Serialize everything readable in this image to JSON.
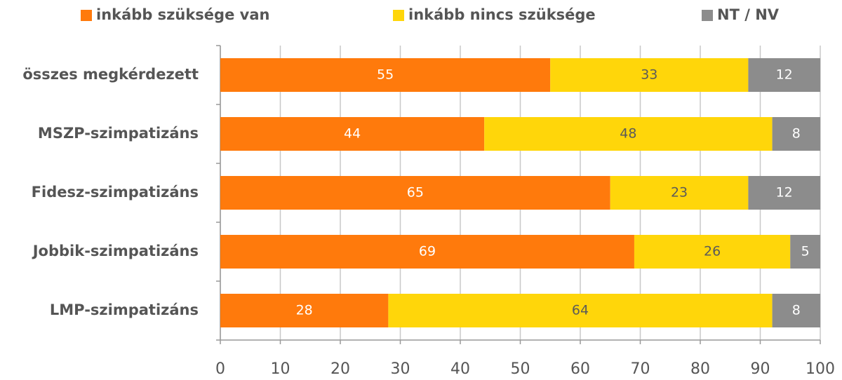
{
  "chart_data": {
    "type": "stacked-bar-horizontal",
    "categories": [
      "összes megkérdezett",
      "MSZP-szimpatizáns",
      "Fidesz-szimpatizáns",
      "Jobbik-szimpatizáns",
      "LMP-szimpatizáns"
    ],
    "series": [
      {
        "name": "inkább szüksége van",
        "color": "#ff7a0c",
        "label_color": "#ffffff",
        "values": [
          55,
          44,
          65,
          69,
          28
        ]
      },
      {
        "name": "inkább nincs szüksége",
        "color": "#ffd60a",
        "label_color": "#5a5a5a",
        "values": [
          33,
          48,
          23,
          26,
          64
        ]
      },
      {
        "name": "NT / NV",
        "color": "#8c8c8c",
        "label_color": "#ffffff",
        "values": [
          12,
          8,
          12,
          5,
          8
        ]
      }
    ],
    "xlim": [
      0,
      100
    ],
    "xticks": [
      0,
      10,
      20,
      30,
      40,
      50,
      60,
      70,
      80,
      90,
      100
    ],
    "grid": true,
    "legend": "top"
  }
}
